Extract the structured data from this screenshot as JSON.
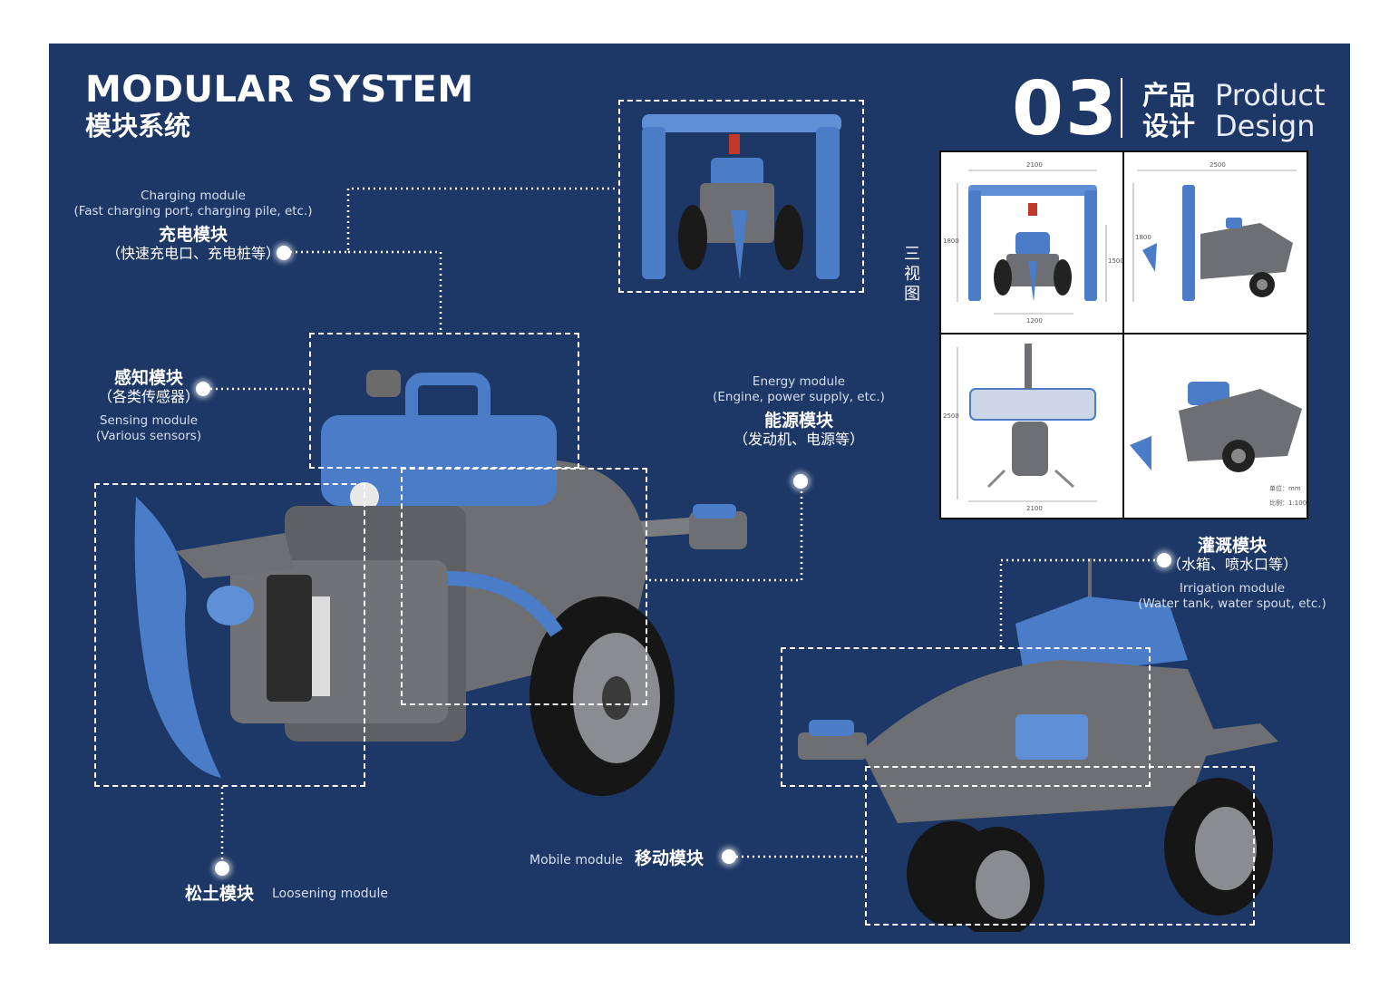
{
  "header": {
    "title_en": "MODULAR SYSTEM",
    "title_cn": "模块系统",
    "section_number": "03",
    "section_cn_line1": "产品",
    "section_cn_line2": "设计",
    "section_en_line1": "Product",
    "section_en_line2": "Design"
  },
  "three_view": {
    "label_chars": [
      "三",
      "视",
      "图"
    ],
    "views": [
      {
        "name": "front",
        "dims": [
          "2100",
          "1800",
          "1500",
          "1200"
        ]
      },
      {
        "name": "side",
        "dims": [
          "2500",
          "1800"
        ]
      },
      {
        "name": "top",
        "dims": [
          "2500",
          "2100"
        ]
      },
      {
        "name": "perspective",
        "unit_text": "单位：mm",
        "scale_text": "比例：1:100"
      }
    ]
  },
  "modules": {
    "charging": {
      "en_title": "Charging module",
      "en_detail": "(Fast charging port, charging pile, etc.)",
      "cn_title": "充电模块",
      "cn_detail": "（快速充电口、充电桩等）"
    },
    "sensing": {
      "cn_title": "感知模块",
      "cn_detail": "（各类传感器）",
      "en_title": "Sensing module",
      "en_detail": "(Various sensors)"
    },
    "energy": {
      "en_title": "Energy module",
      "en_detail": "(Engine, power supply, etc.)",
      "cn_title": "能源模块",
      "cn_detail": "（发动机、电源等）"
    },
    "irrigation": {
      "cn_title": "灌溉模块",
      "cn_detail": "（水箱、喷水口等）",
      "en_title": "Irrigation module",
      "en_detail": "(Water tank, water spout, etc.)"
    },
    "mobile": {
      "en_title": "Mobile module",
      "cn_title": "移动模块"
    },
    "loosening": {
      "cn_title": "松土模块",
      "en_title": "Loosening module"
    }
  },
  "colors": {
    "background": "#1d3766",
    "accent_blue": "#4a7cc8",
    "body_gray": "#6d6f73",
    "white": "#ffffff"
  }
}
